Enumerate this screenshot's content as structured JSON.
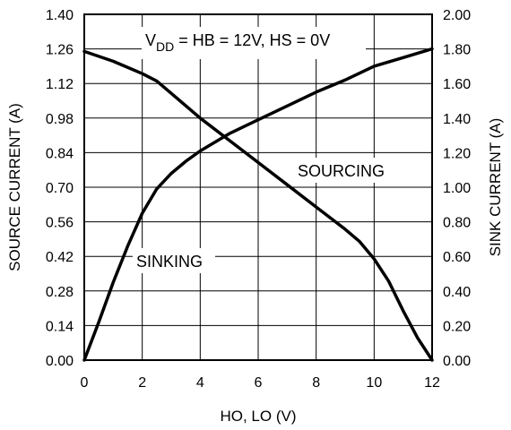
{
  "chart_data": {
    "type": "line",
    "title": "",
    "annotation": {
      "v": "V",
      "sub": "DD",
      "rest": " = HB = 12V, HS = 0V"
    },
    "xlabel": "HO, LO (V)",
    "ylabel_left": "SOURCE CURRENT (A)",
    "ylabel_right": "SINK CURRENT (A)",
    "xlim": [
      0,
      12
    ],
    "ylim_left": [
      0,
      1.4
    ],
    "ylim_right": [
      0,
      2.0
    ],
    "x_ticks": [
      "0",
      "2",
      "4",
      "6",
      "8",
      "10",
      "12"
    ],
    "y_ticks_left": [
      "0.00",
      "0.14",
      "0.28",
      "0.42",
      "0.56",
      "0.70",
      "0.84",
      "0.98",
      "1.12",
      "1.26",
      "1.40"
    ],
    "y_ticks_right": [
      "0.00",
      "0.20",
      "0.40",
      "0.60",
      "0.80",
      "1.00",
      "1.20",
      "1.40",
      "1.60",
      "1.80",
      "2.00"
    ],
    "grid": true,
    "series": [
      {
        "name": "SOURCING",
        "axis": "left",
        "x": [
          0,
          1,
          2,
          2.5,
          3,
          4,
          5,
          6,
          7,
          8,
          9,
          9.5,
          10,
          10.5,
          11,
          11.5,
          12
        ],
        "y": [
          1.25,
          1.21,
          1.16,
          1.13,
          1.08,
          0.98,
          0.89,
          0.8,
          0.71,
          0.62,
          0.53,
          0.48,
          0.41,
          0.32,
          0.2,
          0.09,
          0.0
        ]
      },
      {
        "name": "SINKING",
        "axis": "right",
        "x": [
          0,
          0.5,
          1,
          1.5,
          2,
          2.5,
          3,
          3.5,
          4,
          5,
          6,
          7,
          8,
          9,
          10,
          11,
          12
        ],
        "y": [
          0.0,
          0.22,
          0.45,
          0.66,
          0.85,
          0.99,
          1.08,
          1.15,
          1.21,
          1.31,
          1.39,
          1.47,
          1.55,
          1.62,
          1.7,
          1.75,
          1.8
        ]
      }
    ]
  }
}
